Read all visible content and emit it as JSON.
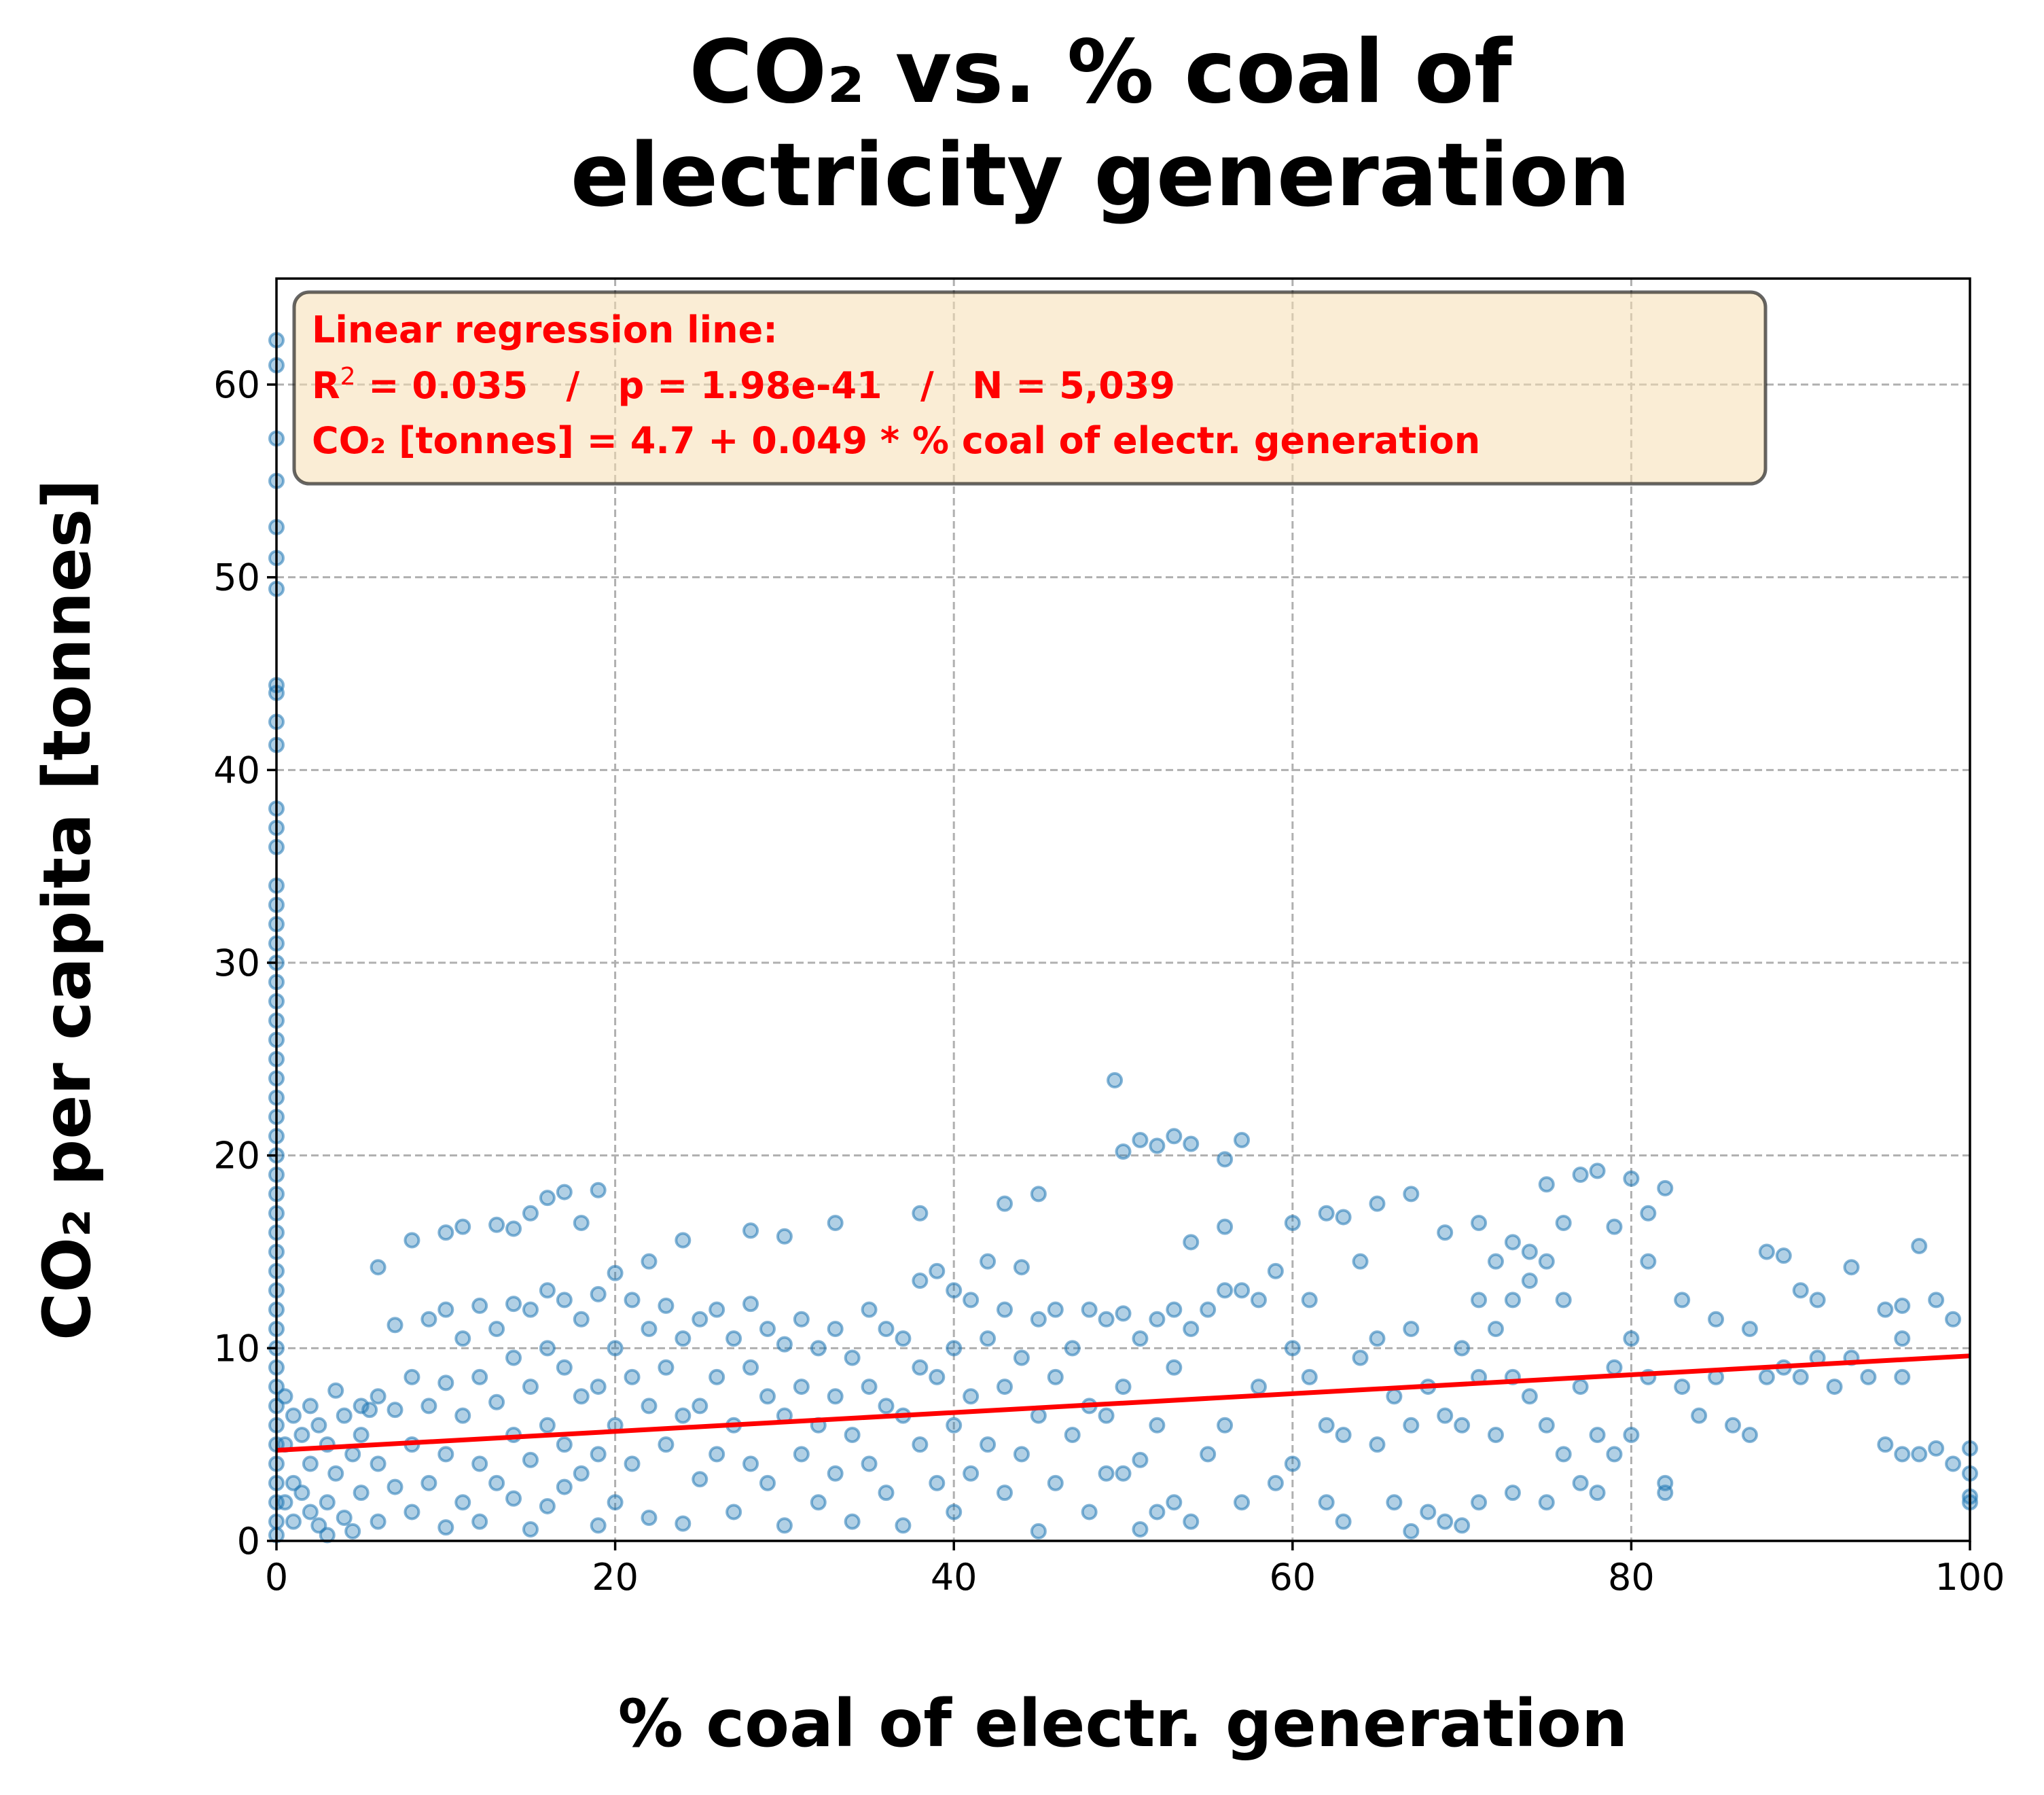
{
  "chart_data": {
    "type": "scatter",
    "title_line1": "CO₂ vs. % coal of",
    "title_line2": "electricity generation",
    "xlabel": "% coal of electr. generation",
    "ylabel": "CO₂ per capita [tonnes]",
    "xlim": [
      0,
      100
    ],
    "ylim": [
      0,
      65.5
    ],
    "xticks": [
      0,
      20,
      40,
      60,
      80,
      100
    ],
    "yticks": [
      0,
      10,
      20,
      30,
      40,
      50,
      60
    ],
    "grid": true,
    "point_color": "#1f77b4",
    "regression": {
      "intercept": 4.7,
      "slope": 0.049,
      "color": "#ff0000",
      "label_line1": "Linear regression line:",
      "label_r2_prefix": "R",
      "label_r2_sup": "2",
      "label_r2_rest": " = 0.035   /   p = 1.98e-41   /   N = 5,039",
      "label_line3": "CO₂ [tonnes] = 4.7 + 0.049 * % coal of electr. generation",
      "box_color": "#f5deb3"
    },
    "points": [
      [
        0,
        62.3
      ],
      [
        0,
        61.0
      ],
      [
        0,
        57.2
      ],
      [
        0,
        55.0
      ],
      [
        0,
        52.6
      ],
      [
        0,
        51.0
      ],
      [
        0,
        49.4
      ],
      [
        0,
        44.4
      ],
      [
        0,
        44.0
      ],
      [
        0,
        42.5
      ],
      [
        0,
        41.3
      ],
      [
        0,
        38.0
      ],
      [
        0,
        37.0
      ],
      [
        0,
        36.0
      ],
      [
        0,
        34.0
      ],
      [
        0,
        33.0
      ],
      [
        0,
        32.0
      ],
      [
        0,
        31.0
      ],
      [
        0,
        30.0
      ],
      [
        0,
        29.0
      ],
      [
        0,
        28.0
      ],
      [
        0,
        27.0
      ],
      [
        0,
        26.0
      ],
      [
        0,
        25.0
      ],
      [
        0,
        24.0
      ],
      [
        0,
        23.0
      ],
      [
        0,
        22.0
      ],
      [
        0,
        21.0
      ],
      [
        0,
        20.0
      ],
      [
        0,
        19.0
      ],
      [
        0,
        18.0
      ],
      [
        0,
        17.0
      ],
      [
        0,
        16.0
      ],
      [
        0,
        15.0
      ],
      [
        0,
        14.0
      ],
      [
        0,
        13.0
      ],
      [
        0,
        12.0
      ],
      [
        0,
        11.0
      ],
      [
        0,
        10.0
      ],
      [
        0,
        9.0
      ],
      [
        0,
        8.0
      ],
      [
        0,
        7.0
      ],
      [
        0,
        6.0
      ],
      [
        0,
        5.0
      ],
      [
        0,
        4.0
      ],
      [
        0,
        3.0
      ],
      [
        0,
        2.0
      ],
      [
        0,
        1.0
      ],
      [
        0,
        0.3
      ],
      [
        0.5,
        7.5
      ],
      [
        0.5,
        5.0
      ],
      [
        0.5,
        2.0
      ],
      [
        1,
        6.5
      ],
      [
        1,
        3.0
      ],
      [
        1,
        1.0
      ],
      [
        1.5,
        5.5
      ],
      [
        1.5,
        2.5
      ],
      [
        2,
        7.0
      ],
      [
        2,
        4.0
      ],
      [
        2,
        1.5
      ],
      [
        2.5,
        6.0
      ],
      [
        2.5,
        0.8
      ],
      [
        3,
        5.0
      ],
      [
        3,
        2.0
      ],
      [
        3,
        0.3
      ],
      [
        3.5,
        7.8
      ],
      [
        3.5,
        3.5
      ],
      [
        4,
        6.5
      ],
      [
        4,
        1.2
      ],
      [
        4.5,
        4.5
      ],
      [
        4.5,
        0.5
      ],
      [
        5,
        7.0
      ],
      [
        5,
        5.5
      ],
      [
        5,
        2.5
      ],
      [
        5.5,
        6.8
      ],
      [
        6,
        14.2
      ],
      [
        6,
        7.5
      ],
      [
        6,
        4.0
      ],
      [
        6,
        1.0
      ],
      [
        7,
        11.2
      ],
      [
        7,
        6.8
      ],
      [
        7,
        2.8
      ],
      [
        8,
        15.6
      ],
      [
        8,
        8.5
      ],
      [
        8,
        5.0
      ],
      [
        8,
        1.5
      ],
      [
        9,
        11.5
      ],
      [
        9,
        7.0
      ],
      [
        9,
        3.0
      ],
      [
        10,
        16.0
      ],
      [
        10,
        12.0
      ],
      [
        10,
        8.2
      ],
      [
        10,
        4.5
      ],
      [
        10,
        0.7
      ],
      [
        11,
        16.3
      ],
      [
        11,
        10.5
      ],
      [
        11,
        6.5
      ],
      [
        11,
        2.0
      ],
      [
        12,
        12.2
      ],
      [
        12,
        8.5
      ],
      [
        12,
        4.0
      ],
      [
        12,
        1.0
      ],
      [
        13,
        16.4
      ],
      [
        13,
        11.0
      ],
      [
        13,
        7.2
      ],
      [
        13,
        3.0
      ],
      [
        14,
        16.2
      ],
      [
        14,
        12.3
      ],
      [
        14,
        9.5
      ],
      [
        14,
        5.5
      ],
      [
        14,
        2.2
      ],
      [
        15,
        17.0
      ],
      [
        15,
        12.0
      ],
      [
        15,
        8.0
      ],
      [
        15,
        4.2
      ],
      [
        15,
        0.6
      ],
      [
        16,
        17.8
      ],
      [
        16,
        13.0
      ],
      [
        16,
        10.0
      ],
      [
        16,
        6.0
      ],
      [
        16,
        1.8
      ],
      [
        17,
        18.1
      ],
      [
        17,
        12.5
      ],
      [
        17,
        9.0
      ],
      [
        17,
        5.0
      ],
      [
        17,
        2.8
      ],
      [
        18,
        16.5
      ],
      [
        18,
        11.5
      ],
      [
        18,
        7.5
      ],
      [
        18,
        3.5
      ],
      [
        19,
        18.2
      ],
      [
        19,
        12.8
      ],
      [
        19,
        8.0
      ],
      [
        19,
        4.5
      ],
      [
        19,
        0.8
      ],
      [
        20,
        13.9
      ],
      [
        20,
        10.0
      ],
      [
        20,
        6.0
      ],
      [
        20,
        2.0
      ],
      [
        21,
        12.5
      ],
      [
        21,
        8.5
      ],
      [
        21,
        4.0
      ],
      [
        22,
        14.5
      ],
      [
        22,
        11.0
      ],
      [
        22,
        7.0
      ],
      [
        22,
        1.2
      ],
      [
        23,
        12.2
      ],
      [
        23,
        9.0
      ],
      [
        23,
        5.0
      ],
      [
        24,
        15.6
      ],
      [
        24,
        10.5
      ],
      [
        24,
        6.5
      ],
      [
        24,
        0.9
      ],
      [
        25,
        11.5
      ],
      [
        25,
        7.0
      ],
      [
        25,
        3.2
      ],
      [
        26,
        12.0
      ],
      [
        26,
        8.5
      ],
      [
        26,
        4.5
      ],
      [
        27,
        10.5
      ],
      [
        27,
        6.0
      ],
      [
        27,
        1.5
      ],
      [
        28,
        16.1
      ],
      [
        28,
        12.3
      ],
      [
        28,
        9.0
      ],
      [
        28,
        4.0
      ],
      [
        29,
        11.0
      ],
      [
        29,
        7.5
      ],
      [
        29,
        3.0
      ],
      [
        30,
        15.8
      ],
      [
        30,
        10.2
      ],
      [
        30,
        6.5
      ],
      [
        30,
        0.8
      ],
      [
        31,
        11.5
      ],
      [
        31,
        8.0
      ],
      [
        31,
        4.5
      ],
      [
        32,
        10.0
      ],
      [
        32,
        6.0
      ],
      [
        32,
        2.0
      ],
      [
        33,
        16.5
      ],
      [
        33,
        11.0
      ],
      [
        33,
        7.5
      ],
      [
        33,
        3.5
      ],
      [
        34,
        9.5
      ],
      [
        34,
        5.5
      ],
      [
        34,
        1.0
      ],
      [
        35,
        12.0
      ],
      [
        35,
        8.0
      ],
      [
        35,
        4.0
      ],
      [
        36,
        11.0
      ],
      [
        36,
        7.0
      ],
      [
        36,
        2.5
      ],
      [
        37,
        10.5
      ],
      [
        37,
        6.5
      ],
      [
        37,
        0.8
      ],
      [
        38,
        17.0
      ],
      [
        38,
        13.5
      ],
      [
        38,
        9.0
      ],
      [
        38,
        5.0
      ],
      [
        39,
        14.0
      ],
      [
        39,
        8.5
      ],
      [
        39,
        3.0
      ],
      [
        40,
        13.0
      ],
      [
        40,
        10.0
      ],
      [
        40,
        6.0
      ],
      [
        40,
        1.5
      ],
      [
        41,
        12.5
      ],
      [
        41,
        7.5
      ],
      [
        41,
        3.5
      ],
      [
        42,
        14.5
      ],
      [
        42,
        10.5
      ],
      [
        42,
        5.0
      ],
      [
        43,
        17.5
      ],
      [
        43,
        12.0
      ],
      [
        43,
        8.0
      ],
      [
        43,
        2.5
      ],
      [
        44,
        14.2
      ],
      [
        44,
        9.5
      ],
      [
        44,
        4.5
      ],
      [
        45,
        18.0
      ],
      [
        45,
        11.5
      ],
      [
        45,
        6.5
      ],
      [
        45,
        0.5
      ],
      [
        46,
        12.0
      ],
      [
        46,
        8.5
      ],
      [
        46,
        3.0
      ],
      [
        47,
        10.0
      ],
      [
        47,
        5.5
      ],
      [
        48,
        12.0
      ],
      [
        48,
        7.0
      ],
      [
        48,
        1.5
      ],
      [
        49,
        11.5
      ],
      [
        49,
        6.5
      ],
      [
        49,
        3.5
      ],
      [
        49.5,
        23.9
      ],
      [
        50,
        20.2
      ],
      [
        50,
        11.8
      ],
      [
        50,
        8.0
      ],
      [
        50,
        3.5
      ],
      [
        51,
        20.8
      ],
      [
        51,
        10.5
      ],
      [
        51,
        4.2
      ],
      [
        51,
        0.6
      ],
      [
        52,
        20.5
      ],
      [
        52,
        11.5
      ],
      [
        52,
        6.0
      ],
      [
        52,
        1.5
      ],
      [
        53,
        21.0
      ],
      [
        53,
        12.0
      ],
      [
        53,
        9.0
      ],
      [
        53,
        2.0
      ],
      [
        54,
        20.6
      ],
      [
        54,
        15.5
      ],
      [
        54,
        11.0
      ],
      [
        54,
        1.0
      ],
      [
        55,
        12.0
      ],
      [
        55,
        4.5
      ],
      [
        56,
        19.8
      ],
      [
        56,
        16.3
      ],
      [
        56,
        13.0
      ],
      [
        56,
        6.0
      ],
      [
        57,
        20.8
      ],
      [
        57,
        13.0
      ],
      [
        57,
        2.0
      ],
      [
        58,
        12.5
      ],
      [
        58,
        8.0
      ],
      [
        59,
        14.0
      ],
      [
        59,
        3.0
      ],
      [
        60,
        16.5
      ],
      [
        60,
        10.0
      ],
      [
        60,
        4.0
      ],
      [
        61,
        12.5
      ],
      [
        61,
        8.5
      ],
      [
        62,
        17.0
      ],
      [
        62,
        6.0
      ],
      [
        62,
        2.0
      ],
      [
        63,
        16.8
      ],
      [
        63,
        5.5
      ],
      [
        63,
        1.0
      ],
      [
        64,
        14.5
      ],
      [
        64,
        9.5
      ],
      [
        65,
        17.5
      ],
      [
        65,
        10.5
      ],
      [
        65,
        5.0
      ],
      [
        66,
        7.5
      ],
      [
        66,
        2.0
      ],
      [
        67,
        18.0
      ],
      [
        67,
        11.0
      ],
      [
        67,
        6.0
      ],
      [
        67,
        0.5
      ],
      [
        68,
        8.0
      ],
      [
        68,
        1.5
      ],
      [
        69,
        16.0
      ],
      [
        69,
        6.5
      ],
      [
        69,
        1.0
      ],
      [
        70,
        10.0
      ],
      [
        70,
        6.0
      ],
      [
        70,
        0.8
      ],
      [
        71,
        16.5
      ],
      [
        71,
        12.5
      ],
      [
        71,
        8.5
      ],
      [
        71,
        2.0
      ],
      [
        72,
        14.5
      ],
      [
        72,
        11.0
      ],
      [
        72,
        5.5
      ],
      [
        73,
        15.5
      ],
      [
        73,
        12.5
      ],
      [
        73,
        8.5
      ],
      [
        73,
        2.5
      ],
      [
        74,
        15.0
      ],
      [
        74,
        13.5
      ],
      [
        74,
        7.5
      ],
      [
        75,
        18.5
      ],
      [
        75,
        14.5
      ],
      [
        75,
        6.0
      ],
      [
        75,
        2.0
      ],
      [
        76,
        16.5
      ],
      [
        76,
        12.5
      ],
      [
        76,
        4.5
      ],
      [
        77,
        19.0
      ],
      [
        77,
        8.0
      ],
      [
        77,
        3.0
      ],
      [
        78,
        19.2
      ],
      [
        78,
        5.5
      ],
      [
        78,
        2.5
      ],
      [
        79,
        16.3
      ],
      [
        79,
        9.0
      ],
      [
        79,
        4.5
      ],
      [
        80,
        18.8
      ],
      [
        80,
        10.5
      ],
      [
        80,
        5.5
      ],
      [
        81,
        17.0
      ],
      [
        81,
        14.5
      ],
      [
        81,
        8.5
      ],
      [
        82,
        18.3
      ],
      [
        82,
        3.0
      ],
      [
        82,
        2.5
      ],
      [
        83,
        12.5
      ],
      [
        83,
        8.0
      ],
      [
        84,
        6.5
      ],
      [
        85,
        11.5
      ],
      [
        85,
        8.5
      ],
      [
        86,
        6.0
      ],
      [
        87,
        11.0
      ],
      [
        87,
        5.5
      ],
      [
        88,
        15.0
      ],
      [
        88,
        8.5
      ],
      [
        89,
        14.8
      ],
      [
        89,
        9.0
      ],
      [
        90,
        13.0
      ],
      [
        90,
        8.5
      ],
      [
        91,
        12.5
      ],
      [
        91,
        9.5
      ],
      [
        92,
        8.0
      ],
      [
        93,
        14.2
      ],
      [
        93,
        9.5
      ],
      [
        94,
        8.5
      ],
      [
        95,
        12.0
      ],
      [
        95,
        5.0
      ],
      [
        96,
        12.2
      ],
      [
        96,
        10.5
      ],
      [
        96,
        8.5
      ],
      [
        96,
        4.5
      ],
      [
        97,
        15.3
      ],
      [
        97,
        4.5
      ],
      [
        98,
        12.5
      ],
      [
        98,
        4.8
      ],
      [
        99,
        11.5
      ],
      [
        99,
        4.0
      ],
      [
        100,
        4.8
      ],
      [
        100,
        3.5
      ],
      [
        100,
        2.3
      ],
      [
        100,
        2.0
      ]
    ]
  }
}
